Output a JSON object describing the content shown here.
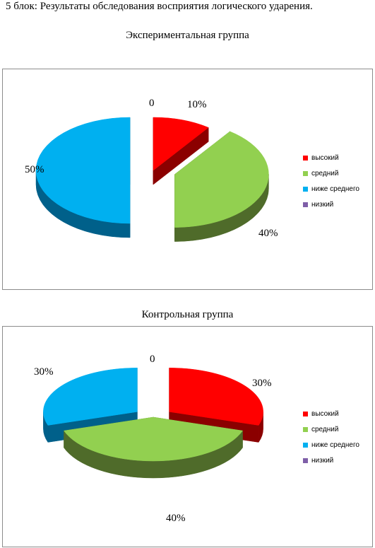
{
  "heading": "5 блок: Результаты обследования восприятия логического ударения.",
  "chart_data": [
    {
      "type": "pie",
      "title": "Экспериментальная группа",
      "categories": [
        "высокий",
        "средний",
        "ниже  среднего",
        "низкий"
      ],
      "values": [
        10,
        40,
        50,
        0
      ],
      "data_labels": [
        "10%",
        "40%",
        "50%",
        "0"
      ],
      "colors": [
        "#ff0000",
        "#92d050",
        "#00b0f0",
        "#7f5fa8"
      ],
      "side_colors": [
        "#8b0000",
        "#4f6b2a",
        "#00608a",
        "#4b3866"
      ],
      "legend_position": "right",
      "style": "3d-exploded"
    },
    {
      "type": "pie",
      "title": "Контрольная группа",
      "categories": [
        "высокий",
        "средний",
        "ниже  среднего",
        "низкий"
      ],
      "values": [
        30,
        40,
        30,
        0
      ],
      "data_labels": [
        "30%",
        "40%",
        "30%",
        "0"
      ],
      "colors": [
        "#ff0000",
        "#92d050",
        "#00b0f0",
        "#7f5fa8"
      ],
      "side_colors": [
        "#8b0000",
        "#4f6b2a",
        "#00608a",
        "#4b3866"
      ],
      "legend_position": "right",
      "style": "3d-exploded"
    }
  ]
}
